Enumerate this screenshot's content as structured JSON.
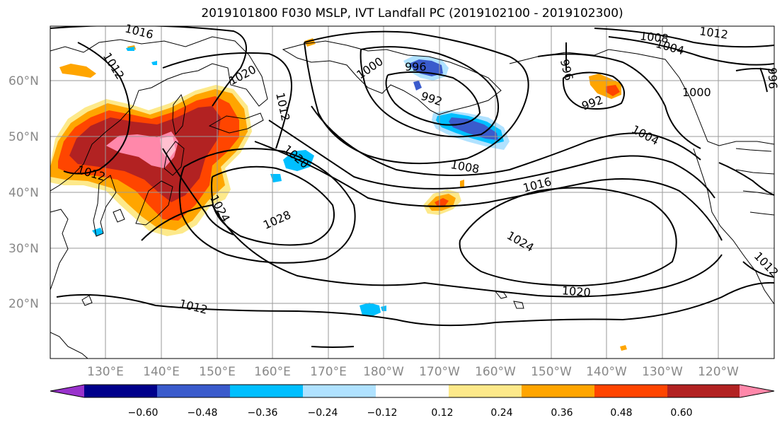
{
  "title": "2019101800 F030 MSLP, IVT Landfall PC (2019102100 - 2019102300)",
  "lat_labels": [
    "60°N",
    "50°N",
    "40°N",
    "30°N",
    "20°N"
  ],
  "lon_labels": [
    "130°E",
    "140°E",
    "150°E",
    "160°E",
    "170°E",
    "180°W",
    "170°W",
    "160°W",
    "150°W",
    "140°W",
    "130°W",
    "120°W"
  ],
  "colorbar": {
    "tick_labels": [
      "−0.60",
      "−0.48",
      "−0.36",
      "−0.24",
      "−0.12",
      "0.12",
      "0.24",
      "0.36",
      "0.48",
      "0.60"
    ],
    "colors": [
      "#9932cc",
      "#00008b",
      "#3a5bcc",
      "#00bfff",
      "#b0e2ff",
      "#ffffff",
      "#fde98a",
      "#ffa500",
      "#ff4500",
      "#b22222",
      "#ff88aa"
    ]
  },
  "isobar_labels": [
    "1016",
    "1012",
    "1020",
    "1012",
    "1000",
    "996",
    "992",
    "996",
    "1008",
    "1004",
    "1012",
    "1000",
    "996",
    "992",
    "1004",
    "1020",
    "1008",
    "1016",
    "1028",
    "1024",
    "1024",
    "1020",
    "1012",
    "1012",
    "1012"
  ]
}
